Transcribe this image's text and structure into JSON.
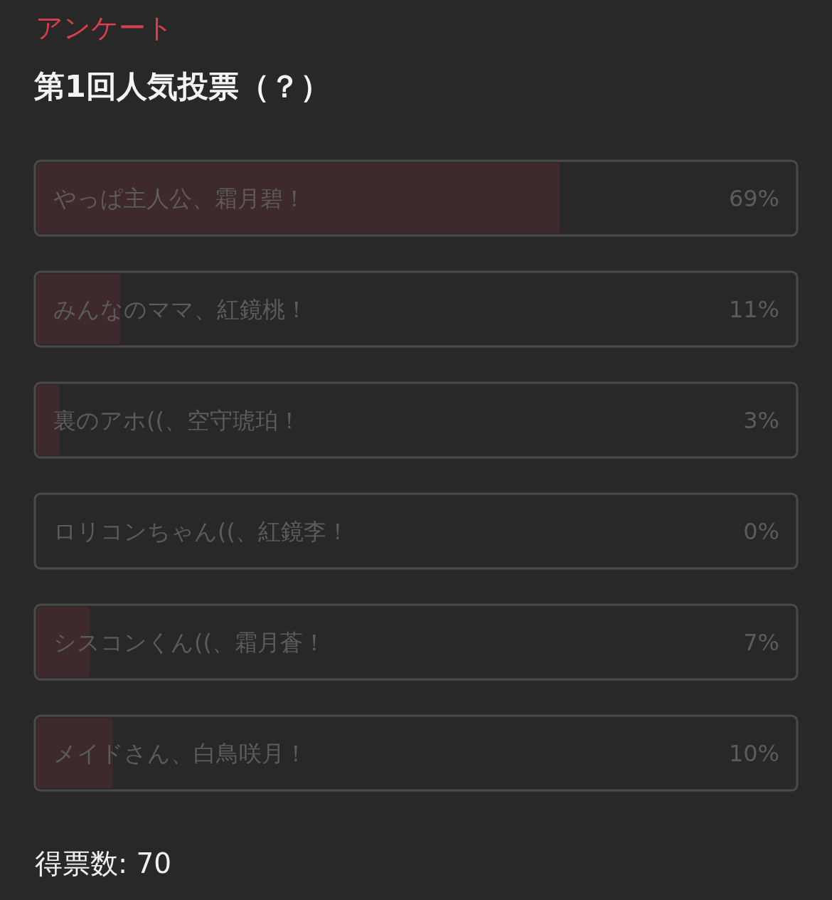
{
  "chart_data": {
    "type": "bar",
    "orientation": "horizontal",
    "subtitle": "アンケート",
    "title": "第1回人気投票（？）",
    "categories": [
      "やっぱ主人公、霜月碧！",
      "みんなのママ、紅鏡桃！",
      "裏のアホ((、空守琥珀！",
      "ロリコンちゃん((、紅鏡李！",
      "シスコンくん((、霜月蒼！",
      "メイドさん、白鳥咲月！"
    ],
    "values": [
      69,
      11,
      3,
      0,
      7,
      10
    ],
    "value_labels": [
      "69%",
      "11%",
      "3%",
      "0%",
      "7%",
      "10%"
    ],
    "color": "#3e2a2c",
    "xlim": [
      0,
      100
    ],
    "tick_labels": "y",
    "annotations": [
      "得票数: 70"
    ]
  }
}
